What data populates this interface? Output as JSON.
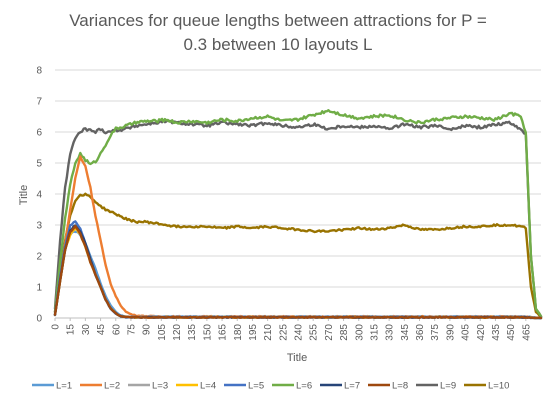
{
  "chart_data": {
    "type": "line",
    "title": [
      "Variances for queue lengths between attractions for P =",
      "0.3 between 10 layouts L"
    ],
    "xlabel": "Title",
    "ylabel": "Title",
    "ylim": [
      0,
      8
    ],
    "yticks": [
      0,
      1,
      2,
      3,
      4,
      5,
      6,
      7,
      8
    ],
    "xlim": [
      0,
      480
    ],
    "xticks": [
      0,
      15,
      30,
      45,
      60,
      75,
      90,
      105,
      120,
      135,
      150,
      165,
      180,
      195,
      210,
      225,
      240,
      255,
      270,
      285,
      300,
      315,
      330,
      345,
      360,
      375,
      390,
      405,
      420,
      435,
      450,
      465
    ],
    "grid": "horizontal",
    "legend_position": "bottom",
    "series": [
      {
        "name": "L=1",
        "color": "#5B9BD5",
        "x": [
          0,
          5,
          10,
          15,
          20,
          25,
          30,
          35,
          40,
          45,
          50,
          55,
          60,
          65,
          70,
          80,
          90,
          120,
          200,
          300,
          400,
          465,
          470,
          475,
          480
        ],
        "values": [
          0.1,
          1.3,
          2.3,
          2.7,
          2.8,
          2.7,
          2.4,
          2.0,
          1.6,
          1.1,
          0.7,
          0.4,
          0.2,
          0.08,
          0.04,
          0.03,
          0.04,
          0.04,
          0.04,
          0.04,
          0.04,
          0.04,
          0.03,
          0.01,
          0.0
        ]
      },
      {
        "name": "L=2",
        "color": "#ED7D31",
        "x": [
          0,
          5,
          10,
          15,
          20,
          25,
          30,
          35,
          40,
          45,
          50,
          55,
          60,
          65,
          70,
          75,
          80,
          90,
          120,
          200,
          300,
          400,
          465,
          470,
          475,
          480
        ],
        "values": [
          0.1,
          1.2,
          2.4,
          3.5,
          4.5,
          5.2,
          4.9,
          4.2,
          3.3,
          2.5,
          1.7,
          1.1,
          0.7,
          0.4,
          0.2,
          0.12,
          0.08,
          0.06,
          0.05,
          0.05,
          0.05,
          0.05,
          0.05,
          0.03,
          0.01,
          0.0
        ]
      },
      {
        "name": "L=3",
        "color": "#A5A5A5",
        "x": [
          0,
          5,
          10,
          15,
          20,
          25,
          30,
          35,
          40,
          45,
          50,
          55,
          60,
          65,
          70,
          80,
          90,
          200,
          465,
          470,
          475,
          480
        ],
        "values": [
          0.1,
          1.2,
          2.2,
          2.8,
          3.0,
          2.8,
          2.4,
          1.9,
          1.4,
          1.0,
          0.6,
          0.3,
          0.15,
          0.06,
          0.03,
          0.02,
          0.02,
          0.02,
          0.02,
          0.01,
          0.0,
          0.0
        ]
      },
      {
        "name": "L=4",
        "color": "#FFC000",
        "x": [
          0,
          5,
          10,
          15,
          20,
          25,
          30,
          35,
          40,
          45,
          50,
          55,
          60,
          65,
          70,
          80,
          90,
          200,
          465,
          470,
          475,
          480
        ],
        "values": [
          0.1,
          1.2,
          2.2,
          2.7,
          2.9,
          2.7,
          2.3,
          1.8,
          1.4,
          1.0,
          0.6,
          0.3,
          0.15,
          0.06,
          0.03,
          0.02,
          0.02,
          0.02,
          0.02,
          0.01,
          0.0,
          0.0
        ]
      },
      {
        "name": "L=5",
        "color": "#4472C4",
        "x": [
          0,
          5,
          10,
          15,
          20,
          25,
          30,
          35,
          40,
          45,
          50,
          55,
          60,
          65,
          70,
          80,
          90,
          200,
          465,
          470,
          475,
          480
        ],
        "values": [
          0.1,
          1.3,
          2.3,
          3.0,
          3.1,
          2.9,
          2.4,
          1.9,
          1.4,
          1.0,
          0.6,
          0.3,
          0.15,
          0.06,
          0.03,
          0.02,
          0.02,
          0.02,
          0.02,
          0.01,
          0.0,
          0.0
        ]
      },
      {
        "name": "L=6",
        "color": "#70AD47",
        "x": [
          0,
          5,
          10,
          15,
          20,
          25,
          30,
          35,
          40,
          45,
          50,
          55,
          60,
          70,
          80,
          90,
          100,
          110,
          120,
          135,
          150,
          165,
          180,
          195,
          210,
          225,
          240,
          255,
          270,
          285,
          300,
          315,
          330,
          345,
          360,
          375,
          390,
          405,
          420,
          435,
          450,
          460,
          465,
          470,
          475,
          480
        ],
        "values": [
          0.2,
          1.8,
          3.2,
          4.3,
          5.0,
          5.3,
          5.1,
          4.95,
          5.05,
          5.3,
          5.6,
          5.9,
          6.1,
          6.2,
          6.3,
          6.35,
          6.35,
          6.4,
          6.3,
          6.35,
          6.3,
          6.4,
          6.35,
          6.45,
          6.5,
          6.35,
          6.4,
          6.55,
          6.7,
          6.55,
          6.45,
          6.5,
          6.55,
          6.4,
          6.3,
          6.4,
          6.45,
          6.5,
          6.45,
          6.4,
          6.6,
          6.5,
          6.0,
          2.0,
          0.3,
          0.05
        ]
      },
      {
        "name": "L=7",
        "color": "#264478",
        "x": [
          0,
          5,
          10,
          15,
          20,
          25,
          30,
          35,
          40,
          45,
          50,
          55,
          60,
          65,
          70,
          80,
          90,
          200,
          465,
          470,
          475,
          480
        ],
        "values": [
          0.1,
          1.2,
          2.2,
          2.8,
          3.0,
          2.8,
          2.4,
          1.9,
          1.4,
          1.0,
          0.6,
          0.3,
          0.15,
          0.06,
          0.03,
          0.02,
          0.02,
          0.02,
          0.02,
          0.01,
          0.0,
          0.0
        ]
      },
      {
        "name": "L=8",
        "color": "#9E480E",
        "x": [
          0,
          5,
          10,
          15,
          20,
          25,
          30,
          35,
          40,
          45,
          50,
          55,
          60,
          65,
          70,
          80,
          90,
          200,
          465,
          470,
          475,
          480
        ],
        "values": [
          0.1,
          1.2,
          2.2,
          2.8,
          2.95,
          2.7,
          2.3,
          1.8,
          1.4,
          1.0,
          0.6,
          0.3,
          0.15,
          0.06,
          0.03,
          0.02,
          0.02,
          0.02,
          0.02,
          0.01,
          0.0,
          0.0
        ]
      },
      {
        "name": "L=9",
        "color": "#636363",
        "x": [
          0,
          5,
          10,
          15,
          20,
          25,
          30,
          35,
          40,
          45,
          50,
          60,
          70,
          80,
          90,
          100,
          110,
          120,
          135,
          150,
          165,
          180,
          195,
          210,
          225,
          240,
          255,
          270,
          285,
          300,
          315,
          330,
          345,
          360,
          375,
          390,
          405,
          420,
          435,
          450,
          460,
          465,
          470,
          475,
          480
        ],
        "values": [
          0.3,
          2.5,
          4.2,
          5.3,
          5.8,
          6.0,
          6.1,
          6.05,
          6.0,
          6.1,
          6.0,
          6.05,
          6.1,
          6.2,
          6.25,
          6.3,
          6.35,
          6.3,
          6.25,
          6.2,
          6.3,
          6.25,
          6.2,
          6.3,
          6.2,
          6.15,
          6.25,
          6.1,
          6.2,
          6.15,
          6.2,
          6.1,
          6.25,
          6.15,
          6.2,
          6.1,
          6.2,
          6.15,
          6.25,
          6.3,
          6.1,
          5.9,
          2.0,
          0.3,
          0.05
        ]
      },
      {
        "name": "L=10",
        "color": "#997300",
        "x": [
          0,
          5,
          10,
          15,
          20,
          25,
          30,
          35,
          40,
          45,
          50,
          60,
          70,
          80,
          90,
          100,
          110,
          120,
          135,
          150,
          165,
          180,
          195,
          210,
          225,
          240,
          255,
          270,
          285,
          300,
          315,
          330,
          345,
          360,
          375,
          390,
          405,
          420,
          435,
          450,
          460,
          465,
          470,
          475,
          480
        ],
        "values": [
          0.2,
          1.4,
          2.5,
          3.3,
          3.8,
          3.95,
          4.0,
          3.9,
          3.75,
          3.6,
          3.5,
          3.35,
          3.2,
          3.1,
          3.1,
          3.05,
          3.0,
          2.95,
          2.95,
          2.95,
          2.9,
          2.95,
          2.9,
          2.95,
          2.9,
          2.85,
          2.8,
          2.8,
          2.85,
          2.9,
          2.85,
          2.9,
          3.0,
          2.85,
          2.85,
          2.9,
          2.95,
          2.95,
          3.0,
          3.0,
          2.95,
          2.9,
          1.0,
          0.2,
          0.03
        ]
      }
    ]
  }
}
